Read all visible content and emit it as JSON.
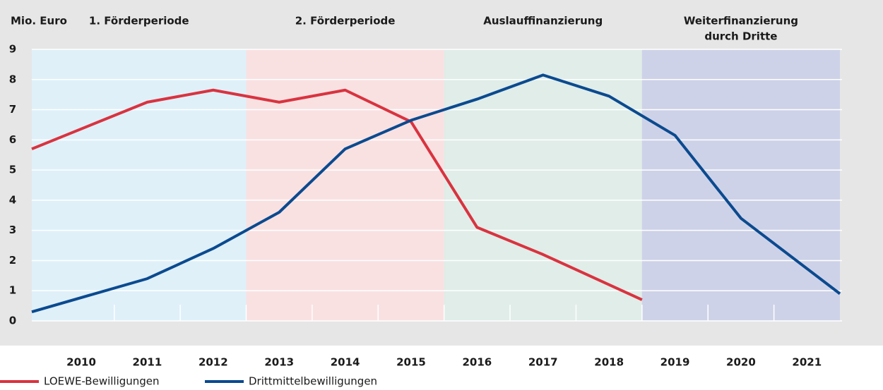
{
  "chart_data": {
    "type": "line",
    "y_label": "Mio. Euro",
    "xlim": [
      2009.25,
      2021.5
    ],
    "xticks": [
      2010,
      2011,
      2012,
      2013,
      2014,
      2015,
      2016,
      2017,
      2018,
      2019,
      2020,
      2021
    ],
    "ylim": [
      0,
      9
    ],
    "yticks": [
      0,
      1,
      2,
      3,
      4,
      5,
      6,
      7,
      8,
      9
    ],
    "grid": true,
    "periods": [
      {
        "label": [
          "1. Förderperiode"
        ],
        "start": 2009.25,
        "end": 2012.5,
        "color": "#dff0f9"
      },
      {
        "label": [
          "2. Förderperiode"
        ],
        "start": 2012.5,
        "end": 2015.5,
        "color": "#f9e1e2"
      },
      {
        "label": [
          "Auslauffinanzierung"
        ],
        "start": 2015.5,
        "end": 2018.5,
        "color": "#e0ede9"
      },
      {
        "label": [
          "Weiterfinanzierung",
          "durch Dritte"
        ],
        "start": 2018.5,
        "end": 2021.5,
        "color": "#ced2e8"
      }
    ],
    "series": [
      {
        "name": "LOEWE-Bewilligungen",
        "color": "#d9333f",
        "x": [
          2009.25,
          2011,
          2012,
          2013,
          2014,
          2015,
          2016,
          2017,
          2018,
          2018.5
        ],
        "values": [
          5.7,
          7.25,
          7.65,
          7.25,
          7.65,
          6.6,
          3.1,
          2.2,
          1.2,
          0.7
        ]
      },
      {
        "name": "Drittmittelbewilligungen",
        "color": "#0b4a8f",
        "x": [
          2009.25,
          2011,
          2012,
          2013,
          2014,
          2015,
          2016,
          2017,
          2018,
          2019,
          2020,
          2021.5
        ],
        "values": [
          0.3,
          1.4,
          2.4,
          3.6,
          5.7,
          6.65,
          7.35,
          8.15,
          7.45,
          6.15,
          3.4,
          0.9
        ]
      }
    ]
  }
}
